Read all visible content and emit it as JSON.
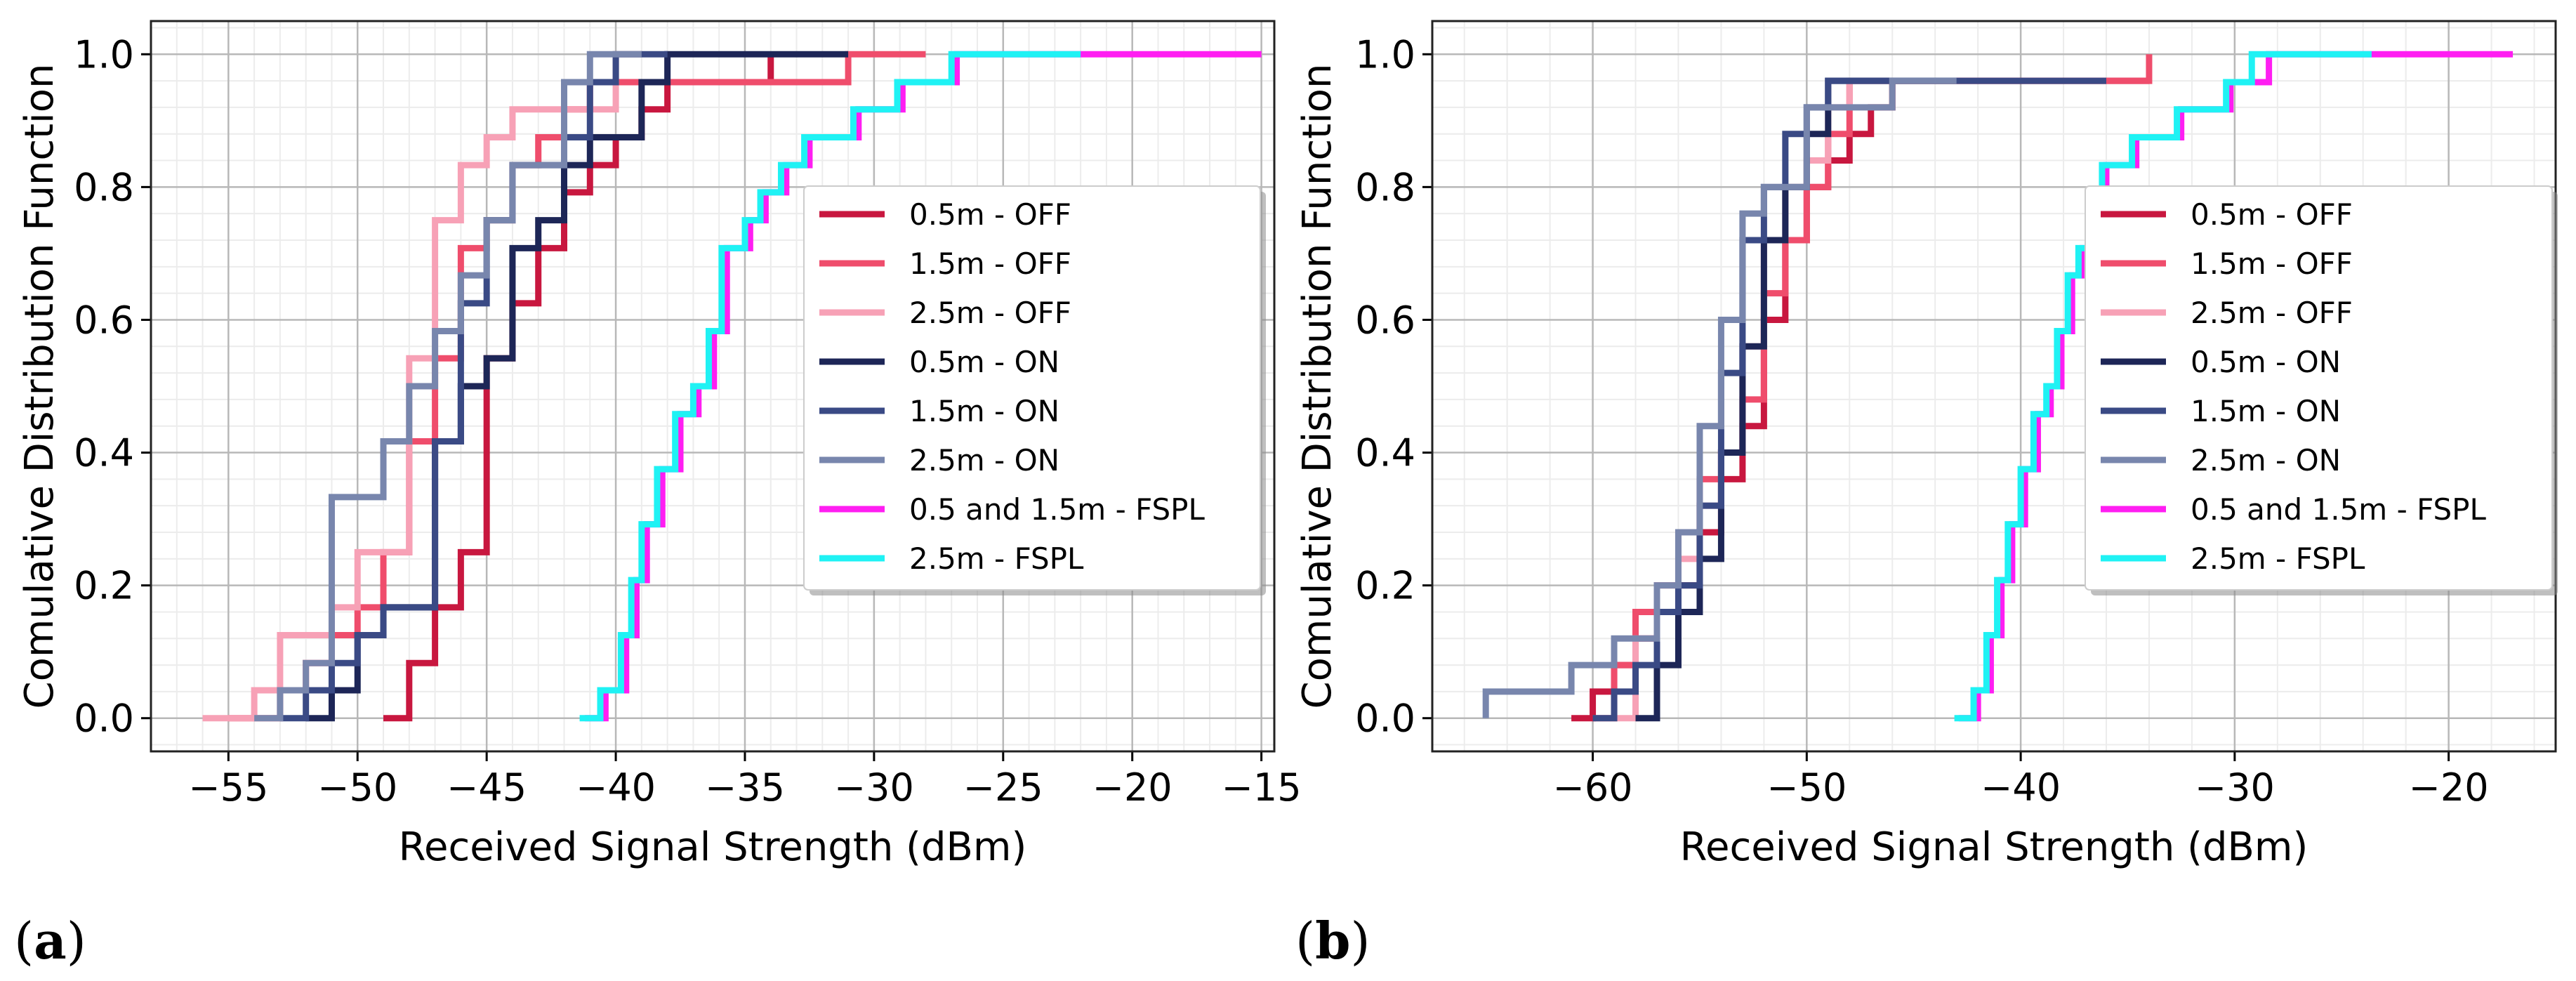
{
  "chart_data": [
    {
      "panel": "(a)",
      "type": "step",
      "xlabel": "Received Signal Strength (dBm)",
      "ylabel": "Comulative Distribution Function",
      "xlim": [
        -58,
        -14.5
      ],
      "ylim": [
        -0.05,
        1.05
      ],
      "xticks": [
        -55,
        -50,
        -45,
        -40,
        -35,
        -30,
        -25,
        -20,
        -15
      ],
      "yticks": [
        0.0,
        0.2,
        0.4,
        0.6,
        0.8,
        1.0
      ],
      "legend_position": "center-right",
      "series": [
        {
          "name": "0.5m - OFF",
          "color": "#c8173f",
          "x": [
            -49,
            -48,
            -47,
            -46,
            -45,
            -45,
            -45,
            -44,
            -43,
            -42,
            -41,
            -40,
            -39,
            -38,
            -34
          ],
          "y": [
            0,
            0.083,
            0.167,
            0.25,
            0.292,
            0.5,
            0.542,
            0.625,
            0.708,
            0.792,
            0.833,
            0.875,
            0.917,
            0.958,
            1.0
          ],
          "xend": -34
        },
        {
          "name": "1.5m - OFF",
          "color": "#ef4d6c",
          "x": [
            -55,
            -53,
            -52,
            -51,
            -50,
            -49,
            -48,
            -47,
            -46,
            -45,
            -44,
            -43,
            -42,
            -41,
            -39,
            -31
          ],
          "y": [
            0,
            0.042,
            0.083,
            0.125,
            0.167,
            0.25,
            0.417,
            0.542,
            0.708,
            0.75,
            0.833,
            0.875,
            0.917,
            0.958,
            0.958,
            1.0
          ],
          "xend": -28
        },
        {
          "name": "2.5m - OFF",
          "color": "#f7a1b6",
          "x": [
            -56,
            -54,
            -53,
            -51,
            -50,
            -48,
            -47,
            -46,
            -45,
            -44,
            -40
          ],
          "y": [
            0,
            0.042,
            0.125,
            0.167,
            0.25,
            0.542,
            0.75,
            0.833,
            0.875,
            0.917,
            1.0
          ],
          "xend": -39
        },
        {
          "name": "0.5m - ON",
          "color": "#1d2657",
          "x": [
            -52,
            -51,
            -50,
            -49,
            -47,
            -46,
            -45,
            -44,
            -43,
            -42,
            -41,
            -39,
            -38
          ],
          "y": [
            0,
            0.042,
            0.125,
            0.167,
            0.417,
            0.5,
            0.542,
            0.708,
            0.75,
            0.833,
            0.875,
            0.958,
            1.0
          ],
          "xend": -31
        },
        {
          "name": "1.5m - ON",
          "color": "#3a4a85",
          "x": [
            -53,
            -52,
            -51,
            -50,
            -49,
            -47,
            -46,
            -45,
            -44,
            -42,
            -41,
            -40
          ],
          "y": [
            0,
            0.042,
            0.083,
            0.125,
            0.167,
            0.417,
            0.625,
            0.75,
            0.833,
            0.875,
            0.958,
            1.0
          ],
          "xend": -38
        },
        {
          "name": "2.5m - ON",
          "color": "#7886ad",
          "x": [
            -54,
            -53,
            -52,
            -51,
            -49,
            -48,
            -47,
            -46,
            -45,
            -44,
            -42,
            -41
          ],
          "y": [
            0,
            0.042,
            0.083,
            0.333,
            0.417,
            0.5,
            0.583,
            0.667,
            0.75,
            0.833,
            0.958,
            1.0
          ],
          "xend": -39
        },
        {
          "name": "0.5 and 1.5m - FSPL",
          "color": "#ff1ef2",
          "x": [
            -41.2,
            -40.4,
            -39.6,
            -39.2,
            -38.8,
            -38.2,
            -37.5,
            -36.8,
            -36.2,
            -35.7,
            -34.8,
            -34.2,
            -33.4,
            -32.5,
            -30.6,
            -28.9,
            -27.6,
            -26.8,
            -22
          ],
          "y": [
            0,
            0.042,
            0.125,
            0.208,
            0.292,
            0.375,
            0.458,
            0.5,
            0.583,
            0.708,
            0.75,
            0.792,
            0.833,
            0.875,
            0.917,
            0.958,
            0.958,
            1.0,
            1.0
          ],
          "xend": -15
        },
        {
          "name": "2.5m - FSPL",
          "color": "#1ff2f4",
          "x": [
            -41.4,
            -40.6,
            -39.8,
            -39.4,
            -39.0,
            -38.4,
            -37.7,
            -37.0,
            -36.4,
            -35.9,
            -35.0,
            -34.4,
            -33.6,
            -32.7,
            -30.8,
            -29.1,
            -27.8,
            -27.0
          ],
          "y": [
            0,
            0.042,
            0.125,
            0.208,
            0.292,
            0.375,
            0.458,
            0.5,
            0.583,
            0.708,
            0.75,
            0.792,
            0.833,
            0.875,
            0.917,
            0.958,
            0.958,
            1.0
          ],
          "xend": -22
        }
      ]
    },
    {
      "panel": "(b)",
      "type": "step",
      "xlabel": "Received Signal Strength (dBm)",
      "ylabel": "Comulative Distribution Function",
      "xlim": [
        -67.5,
        -15
      ],
      "ylim": [
        -0.05,
        1.05
      ],
      "xticks": [
        -60,
        -50,
        -40,
        -30,
        -20
      ],
      "yticks": [
        0.0,
        0.2,
        0.4,
        0.6,
        0.8,
        1.0
      ],
      "legend_position": "center-right",
      "series": [
        {
          "name": "0.5m - OFF",
          "color": "#c8173f",
          "x": [
            -61,
            -60,
            -59,
            -58,
            -57,
            -56,
            -55,
            -54,
            -53,
            -52,
            -51,
            -50,
            -49,
            -48,
            -47,
            -46
          ],
          "y": [
            0,
            0.04,
            0.08,
            0.12,
            0.16,
            0.2,
            0.28,
            0.36,
            0.44,
            0.6,
            0.72,
            0.8,
            0.84,
            0.88,
            0.92,
            0.96
          ],
          "xend": -34
        },
        {
          "name": "1.5m - OFF",
          "color": "#ef4d6c",
          "x": [
            -60,
            -59,
            -58,
            -57,
            -56,
            -55,
            -54,
            -53,
            -52,
            -51,
            -50,
            -49,
            -48,
            -34
          ],
          "y": [
            0,
            0.08,
            0.16,
            0.2,
            0.28,
            0.36,
            0.4,
            0.48,
            0.64,
            0.72,
            0.8,
            0.88,
            0.96,
            1.0
          ],
          "xend": -34
        },
        {
          "name": "2.5m - OFF",
          "color": "#f7a1b6",
          "x": [
            -59,
            -58,
            -57,
            -56,
            -55,
            -54,
            -53,
            -52,
            -51,
            -50,
            -49,
            -48
          ],
          "y": [
            0,
            0.12,
            0.16,
            0.24,
            0.32,
            0.4,
            0.56,
            0.72,
            0.8,
            0.84,
            0.92,
            0.96
          ],
          "xend": -44
        },
        {
          "name": "0.5m - ON",
          "color": "#1d2657",
          "x": [
            -58,
            -57,
            -56,
            -55,
            -54,
            -53,
            -52,
            -51,
            -50,
            -49
          ],
          "y": [
            0,
            0.08,
            0.16,
            0.24,
            0.4,
            0.56,
            0.72,
            0.8,
            0.88,
            0.96
          ],
          "xend": -43
        },
        {
          "name": "1.5m - ON",
          "color": "#3a4a85",
          "x": [
            -60,
            -59,
            -58,
            -57,
            -56,
            -55,
            -54,
            -53,
            -52,
            -51,
            -50,
            -49
          ],
          "y": [
            0,
            0.04,
            0.08,
            0.16,
            0.2,
            0.32,
            0.52,
            0.72,
            0.8,
            0.88,
            0.92,
            0.96
          ],
          "xend": -36
        },
        {
          "name": "2.5m - ON",
          "color": "#7886ad",
          "x": [
            -65,
            -61,
            -59,
            -57,
            -56,
            -55,
            -54,
            -53,
            -52,
            -50,
            -48,
            -46
          ],
          "y": [
            0.04,
            0.08,
            0.12,
            0.2,
            0.28,
            0.44,
            0.6,
            0.76,
            0.8,
            0.92,
            0.92,
            0.96
          ],
          "xend": -43
        },
        {
          "name": "0.5 and 1.5m - FSPL",
          "color": "#ff1ef2",
          "x": [
            -42.9,
            -42.0,
            -41.4,
            -40.9,
            -40.4,
            -39.8,
            -39.2,
            -38.6,
            -38.1,
            -37.6,
            -37.1,
            -36.0,
            -34.6,
            -32.5,
            -30.2,
            -28.4,
            -23.6
          ],
          "y": [
            0,
            0.042,
            0.125,
            0.208,
            0.292,
            0.375,
            0.458,
            0.5,
            0.583,
            0.667,
            0.708,
            0.833,
            0.875,
            0.917,
            0.958,
            1.0,
            1.0
          ],
          "xend": -17
        },
        {
          "name": "2.5m - FSPL",
          "color": "#1ff2f4",
          "x": [
            -43.1,
            -42.2,
            -41.6,
            -41.1,
            -40.6,
            -40.0,
            -39.4,
            -38.8,
            -38.3,
            -37.8,
            -37.3,
            -36.2,
            -34.8,
            -32.7,
            -30.4,
            -29.2
          ],
          "y": [
            0,
            0.042,
            0.125,
            0.208,
            0.292,
            0.375,
            0.458,
            0.5,
            0.583,
            0.667,
            0.708,
            0.833,
            0.875,
            0.917,
            0.958,
            1.0
          ],
          "xend": -23.6
        }
      ]
    }
  ]
}
